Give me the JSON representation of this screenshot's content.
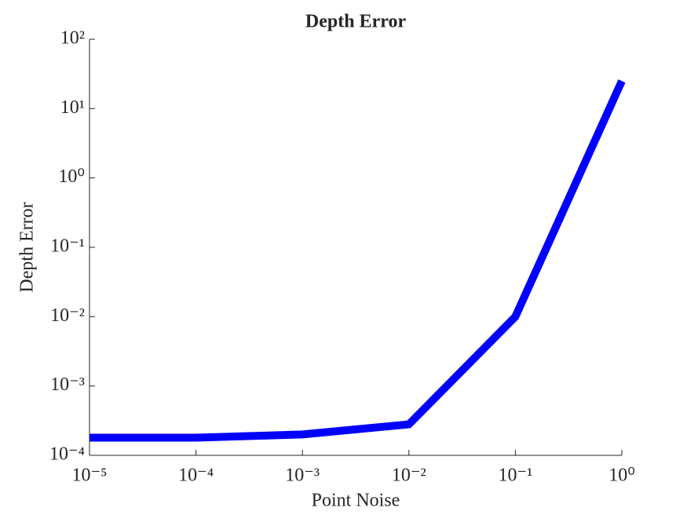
{
  "chart_data": {
    "type": "line",
    "title": "Depth Error",
    "xlabel": "Point Noise",
    "ylabel": "Depth Error",
    "x": [
      1e-05,
      0.0001,
      0.001,
      0.01,
      0.1,
      1
    ],
    "values": [
      0.00018,
      0.00018,
      0.0002,
      0.00028,
      0.01,
      25
    ],
    "color": "#0000ff",
    "xscale": "log",
    "yscale": "log",
    "xlim": [
      1e-05,
      1
    ],
    "ylim": [
      0.0001,
      100
    ],
    "xticks": [
      {
        "value": 1e-05,
        "label": "10⁻⁵"
      },
      {
        "value": 0.0001,
        "label": "10⁻⁴"
      },
      {
        "value": 0.001,
        "label": "10⁻³"
      },
      {
        "value": 0.01,
        "label": "10⁻²"
      },
      {
        "value": 0.1,
        "label": "10⁻¹"
      },
      {
        "value": 1,
        "label": "10⁰"
      }
    ],
    "yticks": [
      {
        "value": 0.0001,
        "label": "10⁻⁴"
      },
      {
        "value": 0.001,
        "label": "10⁻³"
      },
      {
        "value": 0.01,
        "label": "10⁻²"
      },
      {
        "value": 0.1,
        "label": "10⁻¹"
      },
      {
        "value": 1,
        "label": "10⁰"
      },
      {
        "value": 10,
        "label": "10¹"
      },
      {
        "value": 100,
        "label": "10²"
      }
    ]
  }
}
